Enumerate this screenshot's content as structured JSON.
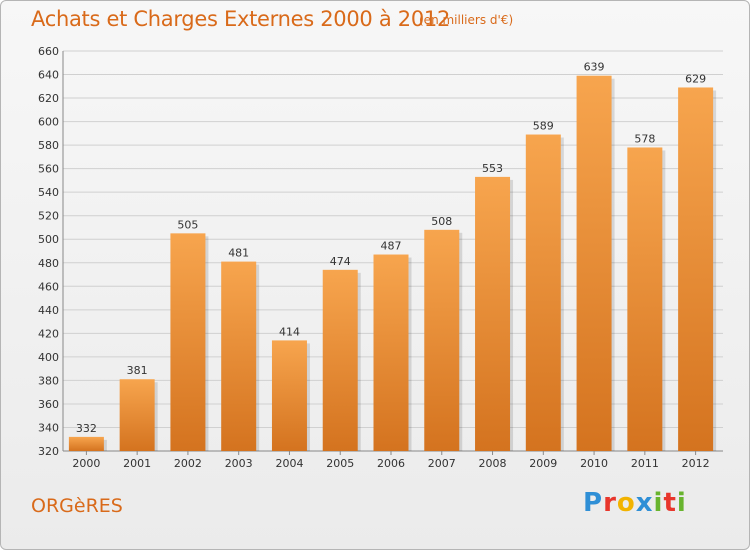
{
  "chart_data": {
    "type": "bar",
    "title": "Achats et Charges Externes 2000 à 2012",
    "subtitle": "(en milliers d'€)",
    "categories": [
      "2000",
      "2001",
      "2002",
      "2003",
      "2004",
      "2005",
      "2006",
      "2007",
      "2008",
      "2009",
      "2010",
      "2011",
      "2012"
    ],
    "values": [
      332,
      381,
      505,
      481,
      414,
      474,
      487,
      508,
      553,
      589,
      639,
      578,
      629
    ],
    "ylim": [
      320,
      660
    ],
    "yticks": [
      320,
      340,
      360,
      380,
      400,
      420,
      440,
      460,
      480,
      500,
      520,
      540,
      560,
      580,
      600,
      620,
      640,
      660
    ],
    "grid": true,
    "xlabel": "",
    "ylabel": "",
    "bar_color_top": "#f7a54e",
    "bar_color_bottom": "#d4731f"
  },
  "commune_label": "ORGèRES",
  "logo": {
    "letters": [
      "P",
      "r",
      "o",
      "x",
      "i",
      "t",
      "i"
    ],
    "colors": [
      "#2f8fd6",
      "#e8362c",
      "#f2b300",
      "#2f8fd6",
      "#68b42e",
      "#e8362c",
      "#68b42e"
    ]
  }
}
